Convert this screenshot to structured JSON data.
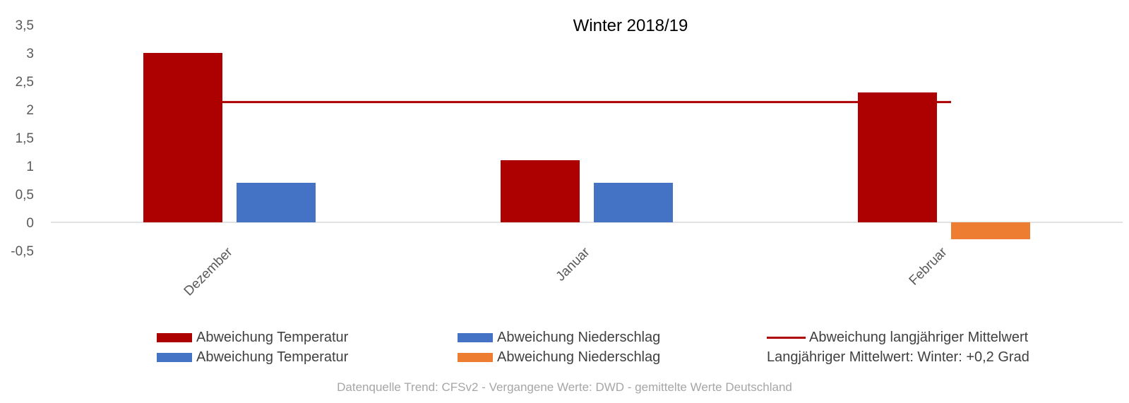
{
  "chart_data": {
    "type": "bar",
    "title": "Winter 2018/19",
    "categories": [
      "Dezember",
      "Januar",
      "Februar"
    ],
    "ylim": [
      -0.5,
      3.5
    ],
    "yticks": [
      "3,5",
      "3",
      "2,5",
      "2",
      "1,5",
      "1",
      "0,5",
      "0",
      "-0,5"
    ],
    "ytick_values": [
      3.5,
      3,
      2.5,
      2,
      1.5,
      1,
      0.5,
      0,
      -0.5
    ],
    "grid": false,
    "series": [
      {
        "name": "Abweichung Temperatur",
        "values": [
          3.0,
          1.1,
          2.3
        ],
        "color": "#ad0000"
      },
      {
        "name": "Abweichung Niederschlag",
        "values": [
          0.7,
          0.7,
          -0.3
        ],
        "colors": [
          "#4472c4",
          "#4472c4",
          "#ed7d31"
        ]
      }
    ],
    "reference_line": {
      "name": "Abweichung langjähriger Mittelwert",
      "value": 2.13,
      "color": "#ad0000"
    },
    "legend_placement": "bottom",
    "legend": [
      {
        "label": "Abweichung Temperatur",
        "kind": "box",
        "color": "#ad0000"
      },
      {
        "label": "Abweichung Niederschlag",
        "kind": "box",
        "color": "#4472c4"
      },
      {
        "label": "Abweichung langjähriger Mittelwert",
        "kind": "line",
        "color": "#ad0000"
      },
      {
        "label": "Abweichung Temperatur",
        "kind": "box",
        "color": "#4472c4"
      },
      {
        "label": "Abweichung Niederschlag",
        "kind": "box",
        "color": "#ed7d31"
      },
      {
        "label": "Langjähriger Mittelwert: Winter: +0,2 Grad",
        "kind": "text"
      }
    ],
    "source": "Datenquelle Trend: CFSv2 - Vergangene Werte: DWD - gemittelte Werte Deutschland"
  }
}
